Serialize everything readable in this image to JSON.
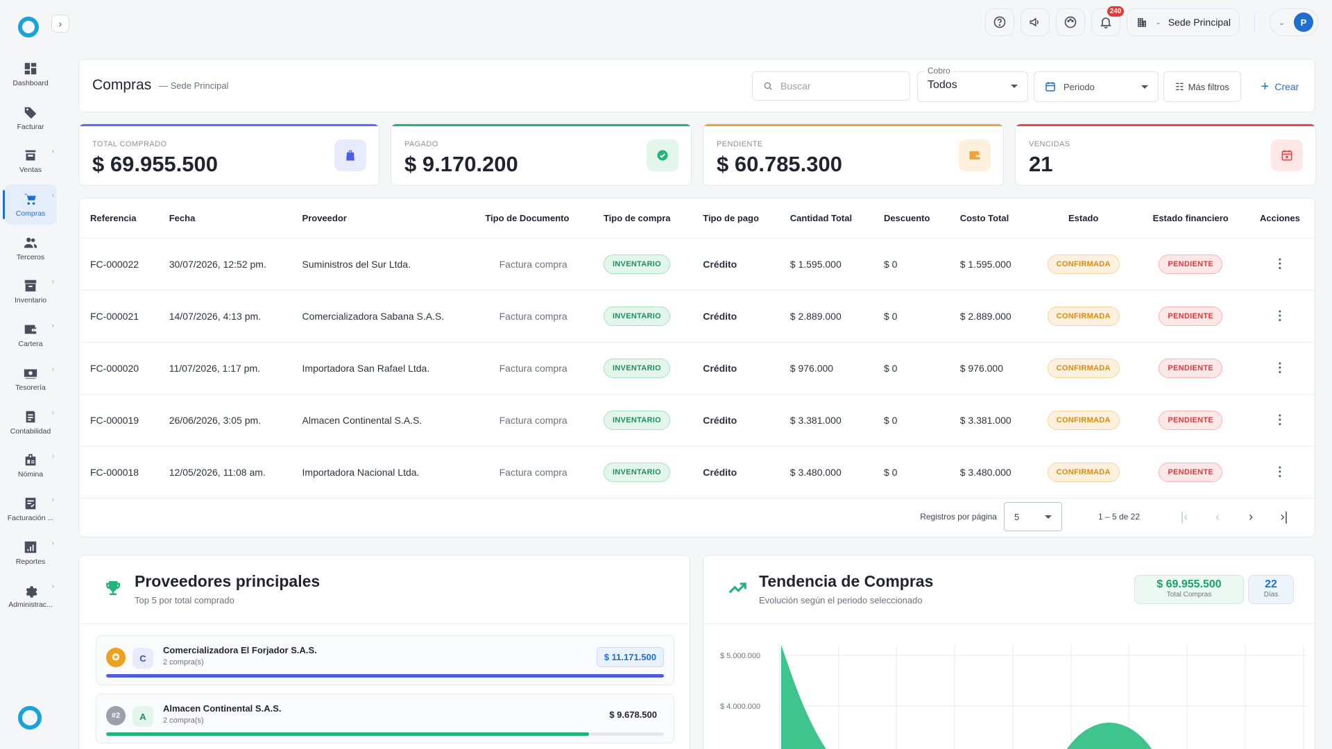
{
  "sidebar": {
    "items": [
      {
        "label": "Dashboard",
        "icon": "dashboard-icon",
        "active": false,
        "chevron": false
      },
      {
        "label": "Facturar",
        "icon": "tag-icon",
        "active": false,
        "chevron": false
      },
      {
        "label": "Ventas",
        "icon": "store-icon",
        "active": false,
        "chevron": true
      },
      {
        "label": "Compras",
        "icon": "cart-icon",
        "active": true,
        "chevron": true
      },
      {
        "label": "Terceros",
        "icon": "people-icon",
        "active": false,
        "chevron": false
      },
      {
        "label": "Inventario",
        "icon": "inventory-icon",
        "active": false,
        "chevron": true
      },
      {
        "label": "Cartera",
        "icon": "wallet-icon",
        "active": false,
        "chevron": true
      },
      {
        "label": "Tesorería",
        "icon": "cash-icon",
        "active": false,
        "chevron": true
      },
      {
        "label": "Contabilidad",
        "icon": "ledger-icon",
        "active": false,
        "chevron": true
      },
      {
        "label": "Nómina",
        "icon": "badge-icon",
        "active": false,
        "chevron": true
      },
      {
        "label": "Facturación ...",
        "icon": "invoice-check-icon",
        "active": false,
        "chevron": true
      },
      {
        "label": "Reportes",
        "icon": "report-icon",
        "active": false,
        "chevron": true
      },
      {
        "label": "Administrac...",
        "icon": "gear-icon",
        "active": false,
        "chevron": true
      }
    ]
  },
  "topbar": {
    "notifications_count": "240",
    "sede_label": "Sede Principal",
    "avatar_letter": "P"
  },
  "header": {
    "title": "Compras",
    "subtitle": "— Sede Principal",
    "search_placeholder": "Buscar",
    "cobro_label": "Cobro",
    "cobro_value": "Todos",
    "periodo_label": "Periodo",
    "filtros_label": "Más filtros",
    "crear_label": "Crear"
  },
  "stats": [
    {
      "label": "Total comprado",
      "value": "$ 69.955.500",
      "color": "#5b6cf0",
      "icon_bg": "#e8ebfd",
      "icon": "bag-icon"
    },
    {
      "label": "Pagado",
      "value": "$ 9.170.200",
      "color": "#22b57a",
      "icon_bg": "#e3f6ec",
      "icon": "check-circle-icon"
    },
    {
      "label": "Pendiente",
      "value": "$ 60.785.300",
      "color": "#f0a33a",
      "icon_bg": "#fdf1dd",
      "icon": "wallet-icon"
    },
    {
      "label": "Vencidas",
      "value": "21",
      "color": "#e5484d",
      "icon_bg": "#fde7e7",
      "icon": "calendar-x-icon"
    }
  ],
  "table": {
    "columns": [
      "Referencia",
      "Fecha",
      "Proveedor",
      "Tipo de Documento",
      "Tipo de compra",
      "Tipo de pago",
      "Cantidad Total",
      "Descuento",
      "Costo Total",
      "Estado",
      "Estado financiero",
      "Acciones"
    ],
    "rows": [
      {
        "ref": "FC-000022",
        "fecha": "30/07/2026, 12:52 pm.",
        "proveedor": "Suministros del Sur Ltda.",
        "tipo_doc": "Factura compra",
        "tipo_compra": "INVENTARIO",
        "tipo_pago": "Crédito",
        "cantidad": "$ 1.595.000",
        "descuento": "$ 0",
        "costo": "$ 1.595.000",
        "estado": "CONFIRMADA",
        "estado_fin": "PENDIENTE"
      },
      {
        "ref": "FC-000021",
        "fecha": "14/07/2026, 4:13 pm.",
        "proveedor": "Comercializadora Sabana S.A.S.",
        "tipo_doc": "Factura compra",
        "tipo_compra": "INVENTARIO",
        "tipo_pago": "Crédito",
        "cantidad": "$ 2.889.000",
        "descuento": "$ 0",
        "costo": "$ 2.889.000",
        "estado": "CONFIRMADA",
        "estado_fin": "PENDIENTE"
      },
      {
        "ref": "FC-000020",
        "fecha": "11/07/2026, 1:17 pm.",
        "proveedor": "Importadora San Rafael Ltda.",
        "tipo_doc": "Factura compra",
        "tipo_compra": "INVENTARIO",
        "tipo_pago": "Crédito",
        "cantidad": "$ 976.000",
        "descuento": "$ 0",
        "costo": "$ 976.000",
        "estado": "CONFIRMADA",
        "estado_fin": "PENDIENTE"
      },
      {
        "ref": "FC-000019",
        "fecha": "26/06/2026, 3:05 pm.",
        "proveedor": "Almacen Continental S.A.S.",
        "tipo_doc": "Factura compra",
        "tipo_compra": "INVENTARIO",
        "tipo_pago": "Crédito",
        "cantidad": "$ 3.381.000",
        "descuento": "$ 0",
        "costo": "$ 3.381.000",
        "estado": "CONFIRMADA",
        "estado_fin": "PENDIENTE"
      },
      {
        "ref": "FC-000018",
        "fecha": "12/05/2026, 11:08 am.",
        "proveedor": "Importadora Nacional Ltda.",
        "tipo_doc": "Factura compra",
        "tipo_compra": "INVENTARIO",
        "tipo_pago": "Crédito",
        "cantidad": "$ 3.480.000",
        "descuento": "$ 0",
        "costo": "$ 3.480.000",
        "estado": "CONFIRMADA",
        "estado_fin": "PENDIENTE"
      }
    ]
  },
  "pagination": {
    "per_page_label": "Registros por página",
    "per_page_value": "5",
    "range_label": "1 – 5 de 22"
  },
  "proveedores": {
    "title": "Proveedores principales",
    "subtitle": "Top 5 por total comprado",
    "items": [
      {
        "rank": "",
        "rank_icon": "medal-icon",
        "letter": "C",
        "name": "Comercializadora El Forjador S.A.S.",
        "count": "2 compra(s)",
        "amount": "$ 11.171.500",
        "share": 1.0,
        "bar_color": "#4f5ce0",
        "rank_color": "#f0a020",
        "letter_bg": "#e8ebfd",
        "letter_color": "#3d4bd0",
        "amount_bg": "#e8f1fd",
        "amount_color": "#1f6fd1"
      },
      {
        "rank": "#2",
        "rank_icon": "",
        "letter": "A",
        "name": "Almacen Continental S.A.S.",
        "count": "2 compra(s)",
        "amount": "$ 9.678.500",
        "share": 0.866,
        "bar_color": "#22b57a",
        "rank_color": "#9aa1ad",
        "letter_bg": "#e3f6ec",
        "letter_color": "#1f8f5e",
        "amount_bg": "transparent",
        "amount_color": "#1f2430"
      }
    ]
  },
  "tendencia": {
    "title": "Tendencia de Compras",
    "subtitle": "Evolución según el periodo seleccionado",
    "total_value": "$ 69.955.500",
    "total_label": "Total Compras",
    "dias_value": "22",
    "dias_label": "Días"
  },
  "chart_data": {
    "type": "area",
    "y_ticks": [
      "$ 5.000.000",
      "$ 4.000.000"
    ],
    "series_color": "#3ec48c"
  }
}
